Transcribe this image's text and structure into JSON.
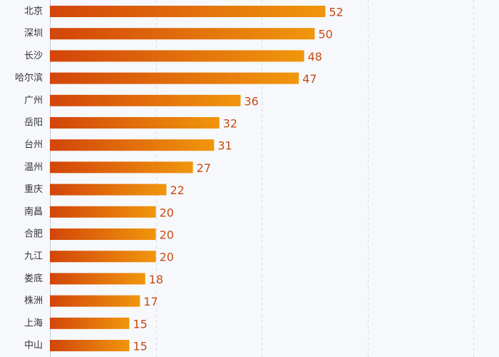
{
  "chart_data": {
    "type": "bar",
    "orientation": "horizontal",
    "title": "",
    "xlabel": "",
    "ylabel": "",
    "categories": [
      "北京",
      "深圳",
      "长沙",
      "哈尔滨",
      "广州",
      "岳阳",
      "台州",
      "温州",
      "重庆",
      "南昌",
      "合肥",
      "九江",
      "娄底",
      "株洲",
      "上海",
      "中山"
    ],
    "values": [
      52,
      50,
      48,
      47,
      36,
      32,
      31,
      27,
      22,
      20,
      20,
      20,
      18,
      17,
      15,
      15
    ],
    "xlim": [
      0,
      80
    ],
    "xticks": [
      0,
      20,
      40,
      60,
      80
    ],
    "grid": true,
    "colors": {
      "bar_start": "#d2450a",
      "bar_end": "#f0960c",
      "value_label": "#c64b12",
      "category_label": "#333333",
      "background": "#f7f8fc",
      "grid": "#d9dbe3"
    }
  }
}
